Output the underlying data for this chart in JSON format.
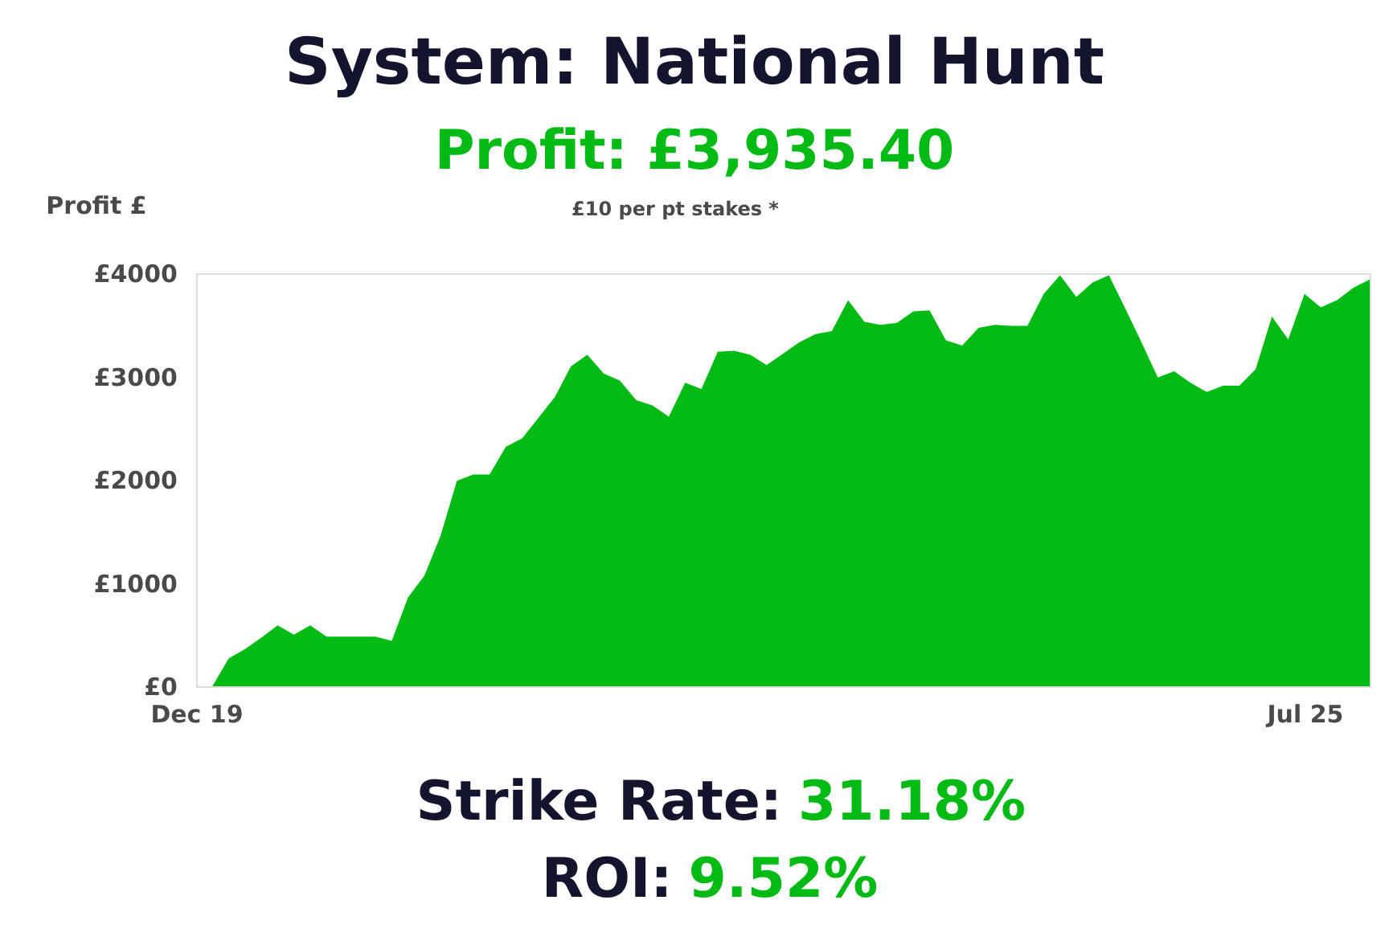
{
  "chart_data": {
    "type": "area",
    "title": "System: National Hunt",
    "subtitle": "Profit: £3,935.40",
    "ylabel": "Profit £",
    "annotations": [
      "£10 per pt stakes *",
      "Strike Rate: 31.18%",
      "ROI: 9.52%"
    ],
    "categories": [
      "Dec 19",
      null,
      null,
      null,
      null,
      null,
      null,
      null,
      null,
      null,
      null,
      null,
      null,
      null,
      null,
      null,
      null,
      null,
      null,
      null,
      null,
      null,
      null,
      null,
      null,
      null,
      null,
      null,
      null,
      null,
      null,
      null,
      null,
      null,
      null,
      null,
      null,
      null,
      null,
      null,
      null,
      null,
      null,
      null,
      null,
      null,
      null,
      null,
      null,
      null,
      null,
      null,
      null,
      null,
      null,
      null,
      null,
      null,
      null,
      null,
      null,
      null,
      null,
      null,
      null,
      null,
      null,
      null,
      "Jul 25",
      null,
      null,
      null,
      null
    ],
    "series": [
      {
        "color": "#04bb16",
        "values": [
          0,
          0,
          270,
          360,
          470,
          590,
          500,
          590,
          480,
          480,
          480,
          480,
          440,
          860,
          1070,
          1460,
          1990,
          2050,
          2050,
          2320,
          2400,
          2600,
          2800,
          3100,
          3210,
          3030,
          2960,
          2770,
          2720,
          2610,
          2940,
          2880,
          3240,
          3250,
          3210,
          3110,
          3220,
          3330,
          3410,
          3440,
          3740,
          3530,
          3500,
          3520,
          3630,
          3640,
          3350,
          3300,
          3470,
          3500,
          3490,
          3490,
          3800,
          3980,
          3770,
          3910,
          3980,
          3660,
          3330,
          2990,
          3050,
          2940,
          2850,
          2910,
          2910,
          3070,
          3580,
          3360,
          3800,
          3670,
          3740,
          3860,
          3940
        ]
      }
    ],
    "ylim": [
      0,
      4000
    ],
    "yticks": [
      {
        "value": 0,
        "label": "£0"
      },
      {
        "value": 1000,
        "label": "£1000"
      },
      {
        "value": 2000,
        "label": "£2000"
      },
      {
        "value": 3000,
        "label": "£3000"
      },
      {
        "value": 4000,
        "label": "£4000"
      }
    ],
    "grid": false
  }
}
